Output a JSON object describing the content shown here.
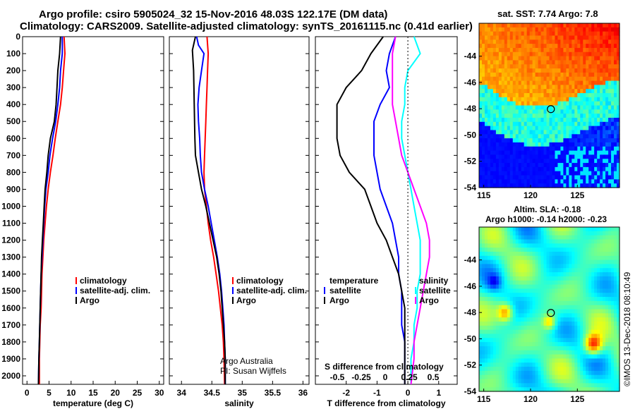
{
  "header": {
    "title_line1": "Argo profile: csiro 5905024_32 15-Nov-2016 48.03S 122.17E (DM data)",
    "title_line2": "Climatology: CARS2009. Satellite-adjusted climatology: synTS_20161115.nc (0.41d earlier)"
  },
  "colors": {
    "climatology": "#ff0000",
    "satellite": "#0000ff",
    "argo": "#000000",
    "s_satellite": "#00ffff",
    "s_argo": "#ff00ff"
  },
  "chart_data": [
    {
      "type": "line",
      "name": "temperature-panel",
      "xlabel": "temperature (deg C)",
      "ylim": [
        2050,
        0
      ],
      "xlim": [
        -1,
        31
      ],
      "xticks": [
        0,
        5,
        10,
        15,
        20,
        25,
        30
      ],
      "yticks": [
        0,
        100,
        200,
        300,
        400,
        500,
        600,
        700,
        800,
        900,
        1000,
        1100,
        1200,
        1300,
        1400,
        1500,
        1600,
        1700,
        1800,
        1900,
        2000
      ],
      "yticklabels": [
        "0",
        "100",
        "200",
        "300",
        "400",
        "500",
        "600",
        "700",
        "800",
        "900",
        "1000",
        "1100",
        "1200",
        "1300",
        "1400",
        "1500",
        "1600",
        "1700",
        "1800",
        "1900",
        "2000"
      ],
      "legend": [
        "climatology",
        "satellite-adj. clim.",
        "Argo"
      ],
      "series": [
        {
          "name": "climatology",
          "color": "#ff0000",
          "points": [
            [
              8.4,
              0
            ],
            [
              8.6,
              100
            ],
            [
              8.3,
              200
            ],
            [
              8.0,
              300
            ],
            [
              7.6,
              400
            ],
            [
              7.0,
              500
            ],
            [
              6.4,
              600
            ],
            [
              5.9,
              700
            ],
            [
              5.3,
              800
            ],
            [
              4.8,
              900
            ],
            [
              4.4,
              1000
            ],
            [
              4.1,
              1100
            ],
            [
              3.8,
              1200
            ],
            [
              3.6,
              1300
            ],
            [
              3.4,
              1400
            ],
            [
              3.3,
              1500
            ],
            [
              3.2,
              1600
            ],
            [
              3.0,
              1700
            ],
            [
              2.9,
              1800
            ],
            [
              2.8,
              1900
            ],
            [
              2.8,
              2050
            ]
          ]
        },
        {
          "name": "satellite-adj. clim.",
          "color": "#0000ff",
          "points": [
            [
              8.0,
              0
            ],
            [
              8.0,
              100
            ],
            [
              7.6,
              200
            ],
            [
              7.4,
              300
            ],
            [
              7.0,
              400
            ],
            [
              6.5,
              500
            ],
            [
              5.8,
              600
            ],
            [
              5.2,
              700
            ],
            [
              4.8,
              800
            ],
            [
              4.3,
              900
            ],
            [
              4.0,
              1000
            ],
            [
              3.8,
              1100
            ],
            [
              3.6,
              1200
            ],
            [
              3.4,
              1300
            ],
            [
              3.2,
              1400
            ],
            [
              3.1,
              1500
            ],
            [
              3.0,
              1600
            ],
            [
              2.9,
              1700
            ],
            [
              2.8,
              1800
            ],
            [
              2.7,
              1900
            ],
            [
              2.6,
              2050
            ]
          ]
        },
        {
          "name": "Argo",
          "color": "#000000",
          "points": [
            [
              7.6,
              0
            ],
            [
              7.4,
              100
            ],
            [
              7.0,
              200
            ],
            [
              6.8,
              300
            ],
            [
              6.6,
              400
            ],
            [
              6.2,
              500
            ],
            [
              5.3,
              600
            ],
            [
              4.8,
              700
            ],
            [
              4.5,
              800
            ],
            [
              4.1,
              900
            ],
            [
              3.9,
              1000
            ],
            [
              3.7,
              1100
            ],
            [
              3.5,
              1200
            ],
            [
              3.3,
              1300
            ],
            [
              3.2,
              1400
            ],
            [
              3.1,
              1500
            ],
            [
              3.0,
              1600
            ],
            [
              2.9,
              1700
            ],
            [
              2.8,
              1800
            ],
            [
              2.7,
              1900
            ],
            [
              2.6,
              2050
            ]
          ]
        }
      ]
    },
    {
      "type": "line",
      "name": "salinity-panel",
      "xlabel": "salinity",
      "ylim": [
        2050,
        0
      ],
      "xlim": [
        33.8,
        36.1
      ],
      "xticks": [
        34,
        34.5,
        35,
        35.5,
        36
      ],
      "legend": [
        "climatology",
        "satellite-adj. clim.",
        "Argo"
      ],
      "annotations": [
        "Argo Australia",
        "PI: Susan Wijffels"
      ],
      "series": [
        {
          "name": "climatology",
          "color": "#ff0000",
          "points": [
            [
              34.42,
              0
            ],
            [
              34.44,
              100
            ],
            [
              34.43,
              200
            ],
            [
              34.42,
              300
            ],
            [
              34.41,
              400
            ],
            [
              34.4,
              500
            ],
            [
              34.39,
              600
            ],
            [
              34.38,
              700
            ],
            [
              34.37,
              800
            ],
            [
              34.38,
              900
            ],
            [
              34.41,
              1000
            ],
            [
              34.44,
              1100
            ],
            [
              34.48,
              1200
            ],
            [
              34.53,
              1300
            ],
            [
              34.57,
              1400
            ],
            [
              34.61,
              1500
            ],
            [
              34.64,
              1600
            ],
            [
              34.67,
              1700
            ],
            [
              34.69,
              1800
            ],
            [
              34.7,
              1900
            ],
            [
              34.71,
              2050
            ]
          ]
        },
        {
          "name": "satellite-adj. clim.",
          "color": "#0000ff",
          "points": [
            [
              34.25,
              0
            ],
            [
              34.28,
              50
            ],
            [
              34.37,
              100
            ],
            [
              34.33,
              200
            ],
            [
              34.29,
              300
            ],
            [
              34.27,
              400
            ],
            [
              34.28,
              500
            ],
            [
              34.3,
              600
            ],
            [
              34.31,
              700
            ],
            [
              34.33,
              800
            ],
            [
              34.38,
              900
            ],
            [
              34.44,
              1000
            ],
            [
              34.49,
              1100
            ],
            [
              34.54,
              1200
            ],
            [
              34.59,
              1300
            ],
            [
              34.63,
              1400
            ],
            [
              34.66,
              1500
            ],
            [
              34.68,
              1600
            ],
            [
              34.7,
              1700
            ],
            [
              34.71,
              1800
            ],
            [
              34.72,
              1900
            ],
            [
              34.72,
              2050
            ]
          ]
        },
        {
          "name": "Argo",
          "color": "#000000",
          "points": [
            [
              34.23,
              0
            ],
            [
              34.18,
              80
            ],
            [
              34.2,
              200
            ],
            [
              34.21,
              400
            ],
            [
              34.22,
              600
            ],
            [
              34.23,
              700
            ],
            [
              34.28,
              800
            ],
            [
              34.33,
              900
            ],
            [
              34.4,
              1000
            ],
            [
              34.46,
              1100
            ],
            [
              34.52,
              1200
            ],
            [
              34.58,
              1300
            ],
            [
              34.62,
              1400
            ],
            [
              34.65,
              1500
            ],
            [
              34.67,
              1600
            ],
            [
              34.69,
              1700
            ],
            [
              34.71,
              1800
            ],
            [
              34.72,
              1900
            ],
            [
              34.72,
              2050
            ]
          ]
        }
      ]
    },
    {
      "type": "line",
      "name": "difference-panel",
      "xlabel": "T difference from climatology",
      "xlabel2": "S difference from climatology",
      "ylim": [
        2050,
        0
      ],
      "xlim": [
        -3.0,
        1.6
      ],
      "xticks": [
        -2,
        -1,
        0,
        1
      ],
      "s_ticks": [
        "-0.5",
        "-0.25",
        "0",
        "0.25",
        "0.5"
      ],
      "legend_left_title": "temperature",
      "legend_right_title": "salinity",
      "legend_left": [
        "satellite",
        "Argo"
      ],
      "legend_right": [
        "satellite",
        "Argo"
      ],
      "series": [
        {
          "name": "T satellite",
          "color": "#0000ff",
          "points": [
            [
              -0.4,
              0
            ],
            [
              -0.6,
              100
            ],
            [
              -0.7,
              200
            ],
            [
              -0.6,
              300
            ],
            [
              -0.9,
              400
            ],
            [
              -1.1,
              500
            ],
            [
              -1.1,
              600
            ],
            [
              -1.1,
              700
            ],
            [
              -1.0,
              800
            ],
            [
              -0.9,
              900
            ],
            [
              -0.7,
              1000
            ],
            [
              -0.5,
              1100
            ],
            [
              -0.4,
              1200
            ],
            [
              -0.3,
              1300
            ],
            [
              -0.3,
              1400
            ],
            [
              -0.2,
              1500
            ],
            [
              -0.2,
              1600
            ],
            [
              -0.2,
              1700
            ],
            [
              -0.1,
              1800
            ],
            [
              -0.1,
              1900
            ],
            [
              -0.1,
              2050
            ]
          ]
        },
        {
          "name": "T Argo",
          "color": "#000000",
          "points": [
            [
              -0.8,
              0
            ],
            [
              -1.2,
              100
            ],
            [
              -1.5,
              200
            ],
            [
              -2.0,
              300
            ],
            [
              -2.3,
              400
            ],
            [
              -2.3,
              500
            ],
            [
              -2.3,
              600
            ],
            [
              -2.2,
              700
            ],
            [
              -1.9,
              800
            ],
            [
              -1.4,
              900
            ],
            [
              -1.2,
              1000
            ],
            [
              -1.0,
              1100
            ],
            [
              -0.7,
              1200
            ],
            [
              -0.5,
              1300
            ],
            [
              -0.3,
              1400
            ],
            [
              -0.2,
              1500
            ],
            [
              -0.1,
              1600
            ],
            [
              -0.1,
              1700
            ],
            [
              -0.1,
              1800
            ],
            [
              -0.1,
              1900
            ],
            [
              -0.1,
              2050
            ]
          ]
        },
        {
          "name": "S satellite",
          "color": "#00ffff",
          "points": [
            [
              0.2,
              0
            ],
            [
              0.4,
              100
            ],
            [
              0.0,
              200
            ],
            [
              -0.1,
              300
            ],
            [
              -0.1,
              400
            ],
            [
              -0.2,
              500
            ],
            [
              -0.2,
              600
            ],
            [
              -0.1,
              700
            ],
            [
              0.0,
              800
            ],
            [
              0.1,
              900
            ],
            [
              0.2,
              1000
            ],
            [
              0.3,
              1100
            ],
            [
              0.4,
              1200
            ],
            [
              0.4,
              1300
            ],
            [
              0.4,
              1400
            ],
            [
              0.3,
              1500
            ],
            [
              0.3,
              1600
            ],
            [
              0.2,
              1700
            ],
            [
              0.2,
              1800
            ],
            [
              0.1,
              1900
            ],
            [
              0.1,
              2050
            ]
          ]
        },
        {
          "name": "S Argo",
          "color": "#ff00ff",
          "points": [
            [
              -0.4,
              0
            ],
            [
              -0.5,
              100
            ],
            [
              -0.5,
              200
            ],
            [
              -0.5,
              300
            ],
            [
              -0.5,
              400
            ],
            [
              -0.4,
              500
            ],
            [
              -0.3,
              600
            ],
            [
              -0.2,
              700
            ],
            [
              0.0,
              800
            ],
            [
              0.2,
              900
            ],
            [
              0.4,
              1000
            ],
            [
              0.6,
              1100
            ],
            [
              0.7,
              1200
            ],
            [
              0.7,
              1300
            ],
            [
              0.6,
              1400
            ],
            [
              0.5,
              1500
            ],
            [
              0.4,
              1600
            ],
            [
              0.3,
              1700
            ],
            [
              0.2,
              1800
            ],
            [
              0.2,
              1900
            ],
            [
              0.1,
              2050
            ]
          ]
        }
      ]
    },
    {
      "type": "heatmap",
      "name": "sst-map",
      "title": "sat. SST: 7.74 Argo: 7.8",
      "xlim": [
        114.5,
        129.5
      ],
      "ylim": [
        -54,
        -41.5
      ],
      "xticks": [
        115,
        120,
        125
      ],
      "yticks": [
        -44,
        -46,
        -48,
        -50,
        -52,
        -54
      ],
      "marker": [
        122.17,
        -48.03
      ]
    },
    {
      "type": "heatmap",
      "name": "altimetry-map",
      "title": "Altim. SLA: -0.18",
      "subtitle": "Argo h1000: -0.14 h2000: -0.23",
      "xlim": [
        114.5,
        129.5
      ],
      "ylim": [
        -54,
        -41.5
      ],
      "xticks": [
        115,
        120,
        125
      ],
      "yticks": [
        -44,
        -46,
        -48,
        -50,
        -52,
        -54
      ],
      "marker": [
        122.17,
        -48.03
      ]
    }
  ],
  "credit": "©IMOS 13-Dec-2018 08:10:49"
}
